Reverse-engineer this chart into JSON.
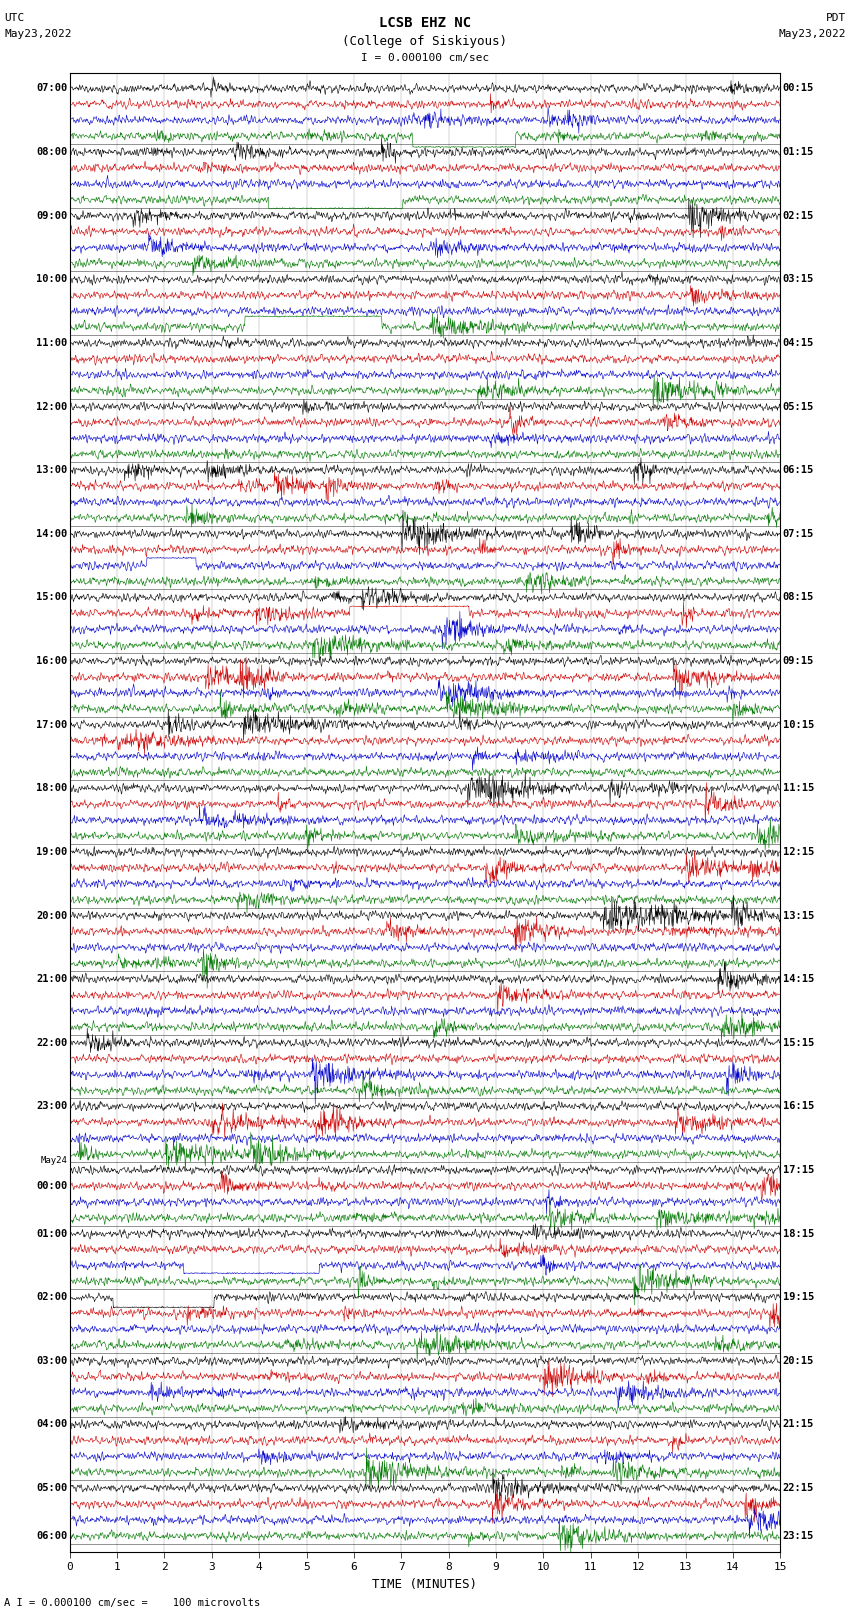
{
  "title_line1": "LCSB EHZ NC",
  "title_line2": "(College of Siskiyous)",
  "scale_text": "I = 0.000100 cm/sec",
  "bottom_text": "A I = 0.000100 cm/sec =    100 microvolts",
  "label_left": "UTC",
  "date_left": "May23,2022",
  "label_right": "PDT",
  "date_right": "May23,2022",
  "xlabel": "TIME (MINUTES)",
  "xlim": [
    0,
    15
  ],
  "xticks": [
    0,
    1,
    2,
    3,
    4,
    5,
    6,
    7,
    8,
    9,
    10,
    11,
    12,
    13,
    14,
    15
  ],
  "fig_width": 8.5,
  "fig_height": 16.13,
  "dpi": 100,
  "n_traces": 92,
  "trace_colors_cycle": [
    "#000000",
    "#cc0000",
    "#0000cc",
    "#007700"
  ],
  "left_times": [
    "07:00",
    "",
    "",
    "",
    "08:00",
    "",
    "",
    "",
    "09:00",
    "",
    "",
    "",
    "10:00",
    "",
    "",
    "",
    "11:00",
    "",
    "",
    "",
    "12:00",
    "",
    "",
    "",
    "13:00",
    "",
    "",
    "",
    "14:00",
    "",
    "",
    "",
    "15:00",
    "",
    "",
    "",
    "16:00",
    "",
    "",
    "",
    "17:00",
    "",
    "",
    "",
    "18:00",
    "",
    "",
    "",
    "19:00",
    "",
    "",
    "",
    "20:00",
    "",
    "",
    "",
    "21:00",
    "",
    "",
    "",
    "22:00",
    "",
    "",
    "",
    "23:00",
    "",
    "",
    "",
    "May24",
    "00:00",
    "",
    "",
    "01:00",
    "",
    "",
    "",
    "02:00",
    "",
    "",
    "",
    "03:00",
    "",
    "",
    "",
    "04:00",
    "",
    "",
    "",
    "05:00",
    "",
    "",
    "06:00"
  ],
  "right_times": [
    "00:15",
    "",
    "",
    "",
    "01:15",
    "",
    "",
    "",
    "02:15",
    "",
    "",
    "",
    "03:15",
    "",
    "",
    "",
    "04:15",
    "",
    "",
    "",
    "05:15",
    "",
    "",
    "",
    "06:15",
    "",
    "",
    "",
    "07:15",
    "",
    "",
    "",
    "08:15",
    "",
    "",
    "",
    "09:15",
    "",
    "",
    "",
    "10:15",
    "",
    "",
    "",
    "11:15",
    "",
    "",
    "",
    "12:15",
    "",
    "",
    "",
    "13:15",
    "",
    "",
    "",
    "14:15",
    "",
    "",
    "",
    "15:15",
    "",
    "",
    "",
    "16:15",
    "",
    "",
    "",
    "17:15",
    "",
    "",
    "",
    "18:15",
    "",
    "",
    "",
    "19:15",
    "",
    "",
    "",
    "20:15",
    "",
    "",
    "",
    "21:15",
    "",
    "",
    "",
    "22:15",
    "",
    "",
    "23:15"
  ],
  "noise_seed": 42,
  "background_color": "#ffffff",
  "plot_bg_color": "#ffffff"
}
